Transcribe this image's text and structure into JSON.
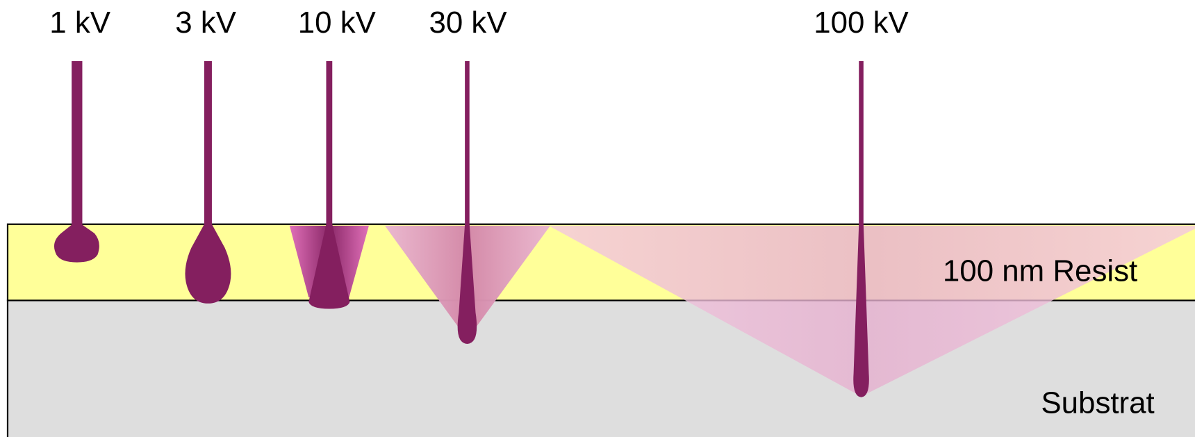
{
  "beams": [
    {
      "label": "1 kV"
    },
    {
      "label": "3 kV"
    },
    {
      "label": "10 kV"
    },
    {
      "label": "30 kV"
    },
    {
      "label": "100 kV"
    }
  ],
  "layers": [
    {
      "label": "100 nm Resist"
    },
    {
      "label": "Substrat"
    }
  ]
}
